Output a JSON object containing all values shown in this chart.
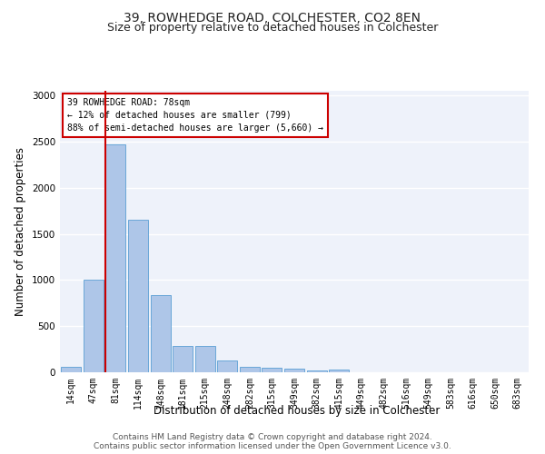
{
  "title1": "39, ROWHEDGE ROAD, COLCHESTER, CO2 8EN",
  "title2": "Size of property relative to detached houses in Colchester",
  "xlabel": "Distribution of detached houses by size in Colchester",
  "ylabel": "Number of detached properties",
  "categories": [
    "14sqm",
    "47sqm",
    "81sqm",
    "114sqm",
    "148sqm",
    "181sqm",
    "215sqm",
    "248sqm",
    "282sqm",
    "315sqm",
    "349sqm",
    "382sqm",
    "415sqm",
    "449sqm",
    "482sqm",
    "516sqm",
    "549sqm",
    "583sqm",
    "616sqm",
    "650sqm",
    "683sqm"
  ],
  "values": [
    55,
    1000,
    2470,
    1650,
    840,
    290,
    290,
    125,
    55,
    50,
    35,
    20,
    30,
    0,
    0,
    0,
    0,
    0,
    0,
    0,
    0
  ],
  "bar_color": "#aec6e8",
  "bar_edge_color": "#5a9fd4",
  "vline_x_idx": 1.55,
  "annotation_title": "39 ROWHEDGE ROAD: 78sqm",
  "annotation_line1": "← 12% of detached houses are smaller (799)",
  "annotation_line2": "88% of semi-detached houses are larger (5,660) →",
  "annotation_box_color": "#ffffff",
  "annotation_border_color": "#cc0000",
  "vline_color": "#cc0000",
  "ylim": [
    0,
    3050
  ],
  "yticks": [
    0,
    500,
    1000,
    1500,
    2000,
    2500,
    3000
  ],
  "footer1": "Contains HM Land Registry data © Crown copyright and database right 2024.",
  "footer2": "Contains public sector information licensed under the Open Government Licence v3.0.",
  "bg_color": "#eef2fa",
  "grid_color": "#ffffff",
  "title1_fontsize": 10,
  "title2_fontsize": 9,
  "axis_label_fontsize": 8.5,
  "tick_fontsize": 7,
  "footer_fontsize": 6.5
}
